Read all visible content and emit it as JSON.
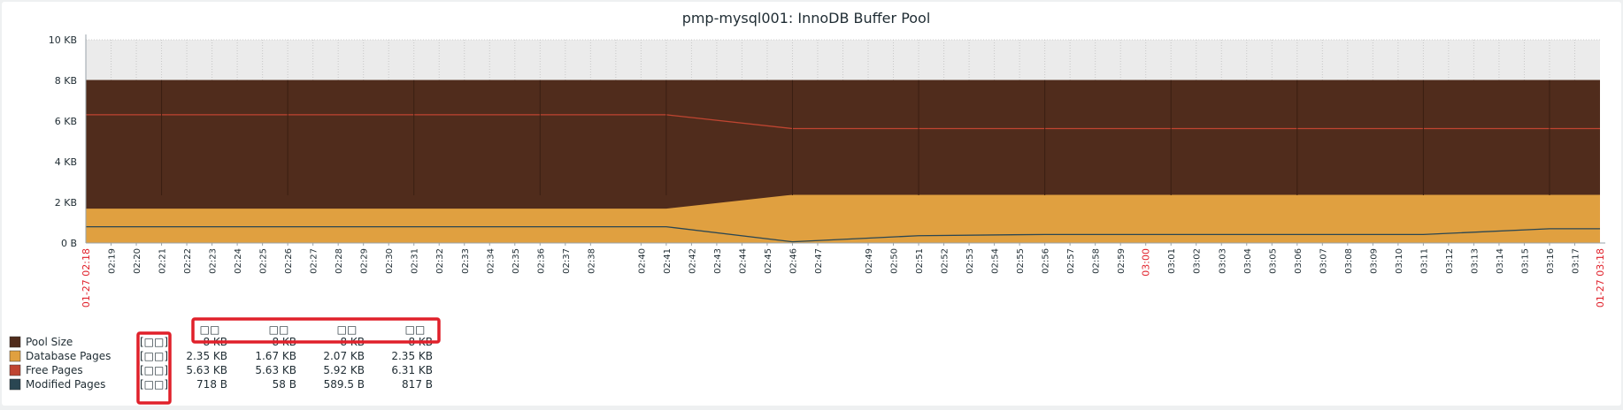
{
  "chart_data": {
    "type": "area",
    "title": "pmp-mysql001: InnoDB Buffer Pool",
    "y_tick_labels": [
      "0 B",
      "2 KB",
      "4 KB",
      "6 KB",
      "8 KB",
      "10 KB"
    ],
    "y_tick_values_kb": [
      0,
      2,
      4,
      6,
      8,
      10
    ],
    "ylim_kb": [
      0,
      10
    ],
    "x_range": [
      "01-27 02:18",
      "01-27 03:18"
    ],
    "x_start_label": "01-27 02:18",
    "x_end_label": "01-27 03:18",
    "x_tick_labels": [
      "02:19",
      "02:20",
      "02:21",
      "02:22",
      "02:23",
      "02:24",
      "02:25",
      "02:26",
      "02:27",
      "02:28",
      "02:29",
      "02:30",
      "02:31",
      "02:32",
      "02:33",
      "02:34",
      "02:35",
      "02:36",
      "02:37",
      "02:38",
      "02:40",
      "02:41",
      "02:42",
      "02:43",
      "02:44",
      "02:45",
      "02:46",
      "02:47",
      "02:49",
      "02:50",
      "02:51",
      "02:52",
      "02:53",
      "02:54",
      "02:55",
      "02:56",
      "02:57",
      "02:58",
      "02:59",
      "03:00",
      "03:01",
      "03:02",
      "03:03",
      "03:04",
      "03:05",
      "03:06",
      "03:07",
      "03:08",
      "03:09",
      "03:10",
      "03:11",
      "03:12",
      "03:13",
      "03:14",
      "03:15",
      "03:16",
      "03:17"
    ],
    "x_tick_minutes": [
      1,
      2,
      3,
      4,
      5,
      6,
      7,
      8,
      9,
      10,
      11,
      12,
      13,
      14,
      15,
      16,
      17,
      18,
      19,
      20,
      22,
      23,
      24,
      25,
      26,
      27,
      28,
      29,
      31,
      32,
      33,
      34,
      35,
      36,
      37,
      38,
      39,
      40,
      41,
      42,
      43,
      44,
      45,
      46,
      47,
      48,
      49,
      50,
      51,
      52,
      53,
      54,
      55,
      56,
      57,
      58,
      59
    ],
    "highlight_tick": "03:00",
    "grid": true,
    "series": [
      {
        "name": "Pool Size",
        "color": "#502c1c",
        "style": "filled",
        "points": [
          [
            "02:18",
            8
          ],
          [
            "03:18",
            8
          ]
        ]
      },
      {
        "name": "Database Pages",
        "color": "#e0a040",
        "style": "filled",
        "points": [
          [
            "02:18",
            1.67
          ],
          [
            "02:41",
            1.67
          ],
          [
            "02:46",
            2.35
          ],
          [
            "03:18",
            2.35
          ]
        ]
      },
      {
        "name": "Free Pages",
        "color": "#bf4531",
        "style": "line",
        "points": [
          [
            "02:18",
            6.31
          ],
          [
            "02:41",
            6.31
          ],
          [
            "02:46",
            5.63
          ],
          [
            "03:18",
            5.63
          ]
        ]
      },
      {
        "name": "Modified Pages",
        "color": "#2a4652",
        "style": "line",
        "points": [
          [
            "02:18",
            0.8
          ],
          [
            "02:41",
            0.8
          ],
          [
            "02:46",
            0.06
          ],
          [
            "02:51",
            0.36
          ],
          [
            "02:56",
            0.42
          ],
          [
            "03:11",
            0.42
          ],
          [
            "03:16",
            0.7
          ],
          [
            "03:18",
            0.7
          ]
        ]
      }
    ],
    "legend_columns": [
      "□□",
      "□□",
      "□□",
      "□□"
    ],
    "legend_rows": [
      {
        "name": "Pool Size",
        "tag": "[□□]",
        "values": [
          "8 KB",
          "8 KB",
          "8 KB",
          "8 KB"
        ]
      },
      {
        "name": "Database Pages",
        "tag": "[□□]",
        "values": [
          "2.35 KB",
          "1.67 KB",
          "2.07 KB",
          "2.35 KB"
        ]
      },
      {
        "name": "Free Pages",
        "tag": "[□□]",
        "values": [
          "5.63 KB",
          "5.63 KB",
          "5.92 KB",
          "6.31 KB"
        ]
      },
      {
        "name": "Modified Pages",
        "tag": "[□□]",
        "values": [
          "718 B",
          "58 B",
          "589.5 B",
          "817 B"
        ]
      }
    ],
    "annotation_color": "#e0202a"
  }
}
